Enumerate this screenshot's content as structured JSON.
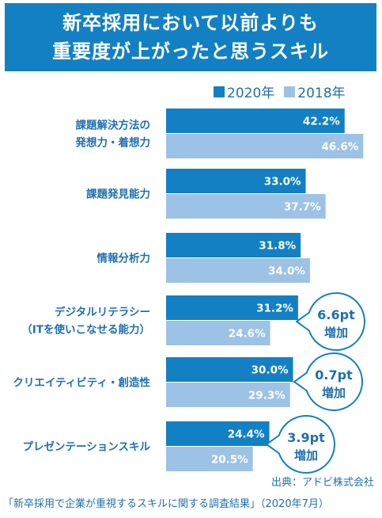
{
  "title_lines": [
    "新卒採用において以前よりも",
    "重要度が上がったと思うスキル"
  ],
  "colors": {
    "series_2020": "#1380c3",
    "series_2018": "#9cc3e6",
    "text": "#1f6fb0",
    "callout_border": "#1380c3"
  },
  "source": "出典：アドビ株式会社",
  "footnote": "「新卒採用で企業が重視するスキルに関する調査結果」（2020年7月）",
  "chart_data": {
    "type": "bar",
    "orientation": "horizontal",
    "categories": [
      [
        "課題解決方法の",
        "発想力・着想力"
      ],
      [
        "課題発見能力"
      ],
      [
        "情報分析力"
      ],
      [
        "デジタルリテラシー",
        "（ITを使いこなせる能力）"
      ],
      [
        "クリエイティビティ・創造性"
      ],
      [
        "プレゼンテーションスキル"
      ]
    ],
    "series": [
      {
        "name": "2020年",
        "values": [
          42.2,
          33.0,
          31.8,
          31.2,
          30.0,
          24.4
        ],
        "labels": [
          "42.2%",
          "33.0%",
          "31.8%",
          "31.2%",
          "30.0%",
          "24.4%"
        ]
      },
      {
        "name": "2018年",
        "values": [
          46.6,
          37.7,
          34.0,
          24.6,
          29.3,
          20.5
        ],
        "labels": [
          "46.6%",
          "37.7%",
          "34.0%",
          "24.6%",
          "29.3%",
          "20.5%"
        ]
      }
    ],
    "annotations": [
      {
        "category_index": 3,
        "lines": [
          "6.6pt",
          "増加"
        ]
      },
      {
        "category_index": 4,
        "lines": [
          "0.7pt",
          "増加"
        ]
      },
      {
        "category_index": 5,
        "lines": [
          "3.9pt",
          "増加"
        ]
      }
    ],
    "legend_position": "top-right",
    "grid": false
  }
}
